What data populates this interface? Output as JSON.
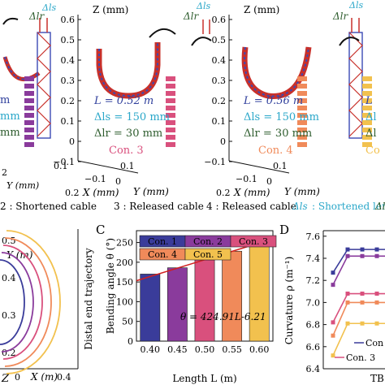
{
  "colors": {
    "con1": "#3a3c9a",
    "con2": "#8a3b9c",
    "con3": "#d9507d",
    "con4": "#f08a5a",
    "con5": "#f2c14e",
    "fit": "#d21f1f",
    "rod": "#c8302a",
    "lattice": "#3b49b5",
    "shortened": "#2aa7c9",
    "released": "#2e5d2e",
    "lengthL": "#2f3f9c"
  },
  "panel_a": {
    "axis_label_z": "Z (mm)",
    "axis_label_x": "X (mm)",
    "axis_label_y": "Y (mm)",
    "delta_ls": "Δls",
    "delta_lr": "Δlr",
    "panels": [
      {
        "con": "Con. 3",
        "L": "L = 0.52 m",
        "dls": "Δls = 150 mm",
        "dlr": "Δlr = 30 mm",
        "z_ticks": [
          "0.6",
          "0.5",
          "0.4",
          "0.3",
          "0.2",
          "0.1",
          "0",
          "−0.1"
        ],
        "x_ticks": [
          "−0.1",
          "0",
          "0.1"
        ],
        "y_ticks": [
          "0.1"
        ],
        "x_label_num": "0.2"
      },
      {
        "con": "Con. 4",
        "L": "L = 0.56 m",
        "dls": "Δls = 150 mm",
        "dlr": "Δlr = 30 mm",
        "z_ticks": [
          "0.6",
          "0.5",
          "0.4",
          "0.3",
          "0.2",
          "0.1",
          "0",
          "−0.1"
        ],
        "x_ticks": [
          "−0.1",
          "0",
          "0.1"
        ],
        "y_ticks": [
          "0.1"
        ],
        "x_label_num": "0.2"
      }
    ],
    "left_partial": {
      "labels": [
        "m",
        "mm",
        "mm"
      ],
      "tick": "0.1",
      "tick2": "2"
    },
    "right_partial": {
      "labels": [
        "L",
        "Δl",
        "Δl",
        "Co"
      ]
    }
  },
  "legend_line": {
    "item2": "2 : Shortened cable",
    "item3": "3 : Released cable",
    "item4": "4 : Released cable",
    "ls_sym": "Δls",
    "ls_text": ": Shortened length",
    "lr_sym": "Δl"
  },
  "panel_b": {
    "ylabel": "Distal end trajectory",
    "xlabel": "X (m)",
    "x_ticks": [
      "0",
      "0.2",
      "0.4"
    ],
    "y_ticks": [
      "0.5",
      "0.4",
      "0.3",
      "0.2"
    ],
    "y_axis_label": "Y (m)",
    "letter": "Z"
  },
  "chart_data": [
    {
      "type": "bar",
      "panel_label": "C",
      "categories": [
        "0.40",
        "0.45",
        "0.50",
        "0.55",
        "0.60"
      ],
      "x": [
        0.4,
        0.45,
        0.5,
        0.55,
        0.6
      ],
      "values": [
        170,
        186,
        206,
        228,
        258
      ],
      "series_names": [
        "Con. 1",
        "Con. 2",
        "Con. 3",
        "Con. 4",
        "Con. 5"
      ],
      "xlabel": "Length L (m)",
      "ylabel": "Bending angle θ (°)",
      "y_ticks": [
        "0",
        "50",
        "100",
        "150",
        "200",
        "250"
      ],
      "ylim": [
        0,
        280
      ],
      "fit_label": "θ = 424.91L-6.21",
      "fit": {
        "slope": 424.91,
        "intercept": -6.21
      }
    },
    {
      "type": "line",
      "panel_label": "D",
      "ylabel": "Curvature ρ (m⁻¹)",
      "xlabel": "TB",
      "y_ticks": [
        "6.4",
        "6.6",
        "6.8",
        "7.0",
        "7.2",
        "7.4",
        "7.6"
      ],
      "ylim": [
        6.4,
        7.65
      ],
      "x": [
        0,
        1,
        2,
        3,
        4
      ],
      "series": [
        {
          "values": [
            7.27,
            7.48,
            7.48,
            7.48,
            7.48
          ]
        },
        {
          "values": [
            7.16,
            7.42,
            7.42,
            7.42,
            7.42
          ]
        },
        {
          "values": [
            6.82,
            7.08,
            7.08,
            7.08,
            7.08
          ]
        },
        {
          "values": [
            6.7,
            7.0,
            7.0,
            7.0,
            7.0
          ]
        },
        {
          "values": [
            6.52,
            6.81,
            6.81,
            6.81,
            6.81
          ]
        }
      ],
      "legend_labels": [
        "Con",
        "Con. 3"
      ]
    }
  ]
}
